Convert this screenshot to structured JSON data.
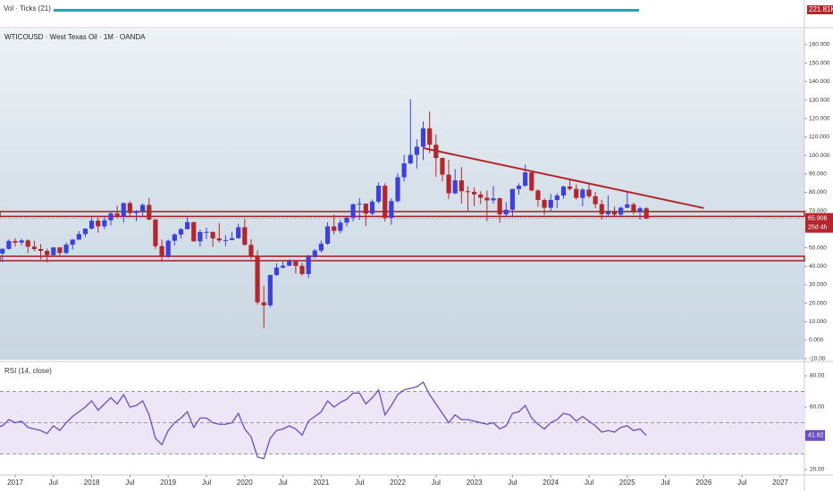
{
  "chart_data": [
    {
      "type": "candlestick",
      "title": "WTICOUSD · West Texas Oil · 1M · OANDA",
      "up_color": "#3d40e0",
      "down_color": "#b3262b",
      "x": [
        "2016-10",
        "2016-11",
        "2016-12",
        "2017-01",
        "2017-02",
        "2017-03",
        "2017-04",
        "2017-05",
        "2017-06",
        "2017-07",
        "2017-08",
        "2017-09",
        "2017-10",
        "2017-11",
        "2017-12",
        "2018-01",
        "2018-02",
        "2018-03",
        "2018-04",
        "2018-05",
        "2018-06",
        "2018-07",
        "2018-08",
        "2018-09",
        "2018-10",
        "2018-11",
        "2018-12",
        "2019-01",
        "2019-02",
        "2019-03",
        "2019-04",
        "2019-05",
        "2019-06",
        "2019-07",
        "2019-08",
        "2019-09",
        "2019-10",
        "2019-11",
        "2019-12",
        "2020-01",
        "2020-02",
        "2020-03",
        "2020-04",
        "2020-05",
        "2020-06",
        "2020-07",
        "2020-08",
        "2020-09",
        "2020-10",
        "2020-11",
        "2020-12",
        "2021-01",
        "2021-02",
        "2021-03",
        "2021-04",
        "2021-05",
        "2021-06",
        "2021-07",
        "2021-08",
        "2021-09",
        "2021-10",
        "2021-11",
        "2021-12",
        "2022-01",
        "2022-02",
        "2022-03",
        "2022-04",
        "2022-05",
        "2022-06",
        "2022-07",
        "2022-08",
        "2022-09",
        "2022-10",
        "2022-11",
        "2022-12",
        "2023-01",
        "2023-02",
        "2023-03",
        "2023-04",
        "2023-05",
        "2023-06",
        "2023-07",
        "2023-08",
        "2023-09",
        "2023-10",
        "2023-11",
        "2023-12",
        "2024-01",
        "2024-02",
        "2024-03",
        "2024-04",
        "2024-05",
        "2024-06",
        "2024-07",
        "2024-08",
        "2024-09",
        "2024-10",
        "2024-11",
        "2024-12",
        "2025-01",
        "2025-02",
        "2025-03",
        "2025-04"
      ],
      "ohlc": [
        [
          48.5,
          51.9,
          43.6,
          46.9
        ],
        [
          46.9,
          49.9,
          42.2,
          49.4
        ],
        [
          49.4,
          54.5,
          49.0,
          53.7
        ],
        [
          53.7,
          55.2,
          50.7,
          52.8
        ],
        [
          52.8,
          54.9,
          51.2,
          54.0
        ],
        [
          54.0,
          54.6,
          47.1,
          50.6
        ],
        [
          50.6,
          53.8,
          48.2,
          49.3
        ],
        [
          49.3,
          52.0,
          43.8,
          48.3
        ],
        [
          48.3,
          49.6,
          42.1,
          46.0
        ],
        [
          46.0,
          50.4,
          45.4,
          50.2
        ],
        [
          50.2,
          50.4,
          45.6,
          47.2
        ],
        [
          47.2,
          52.9,
          46.5,
          51.7
        ],
        [
          51.7,
          54.8,
          49.1,
          54.4
        ],
        [
          54.4,
          59.1,
          54.3,
          57.4
        ],
        [
          57.4,
          60.5,
          55.8,
          60.4
        ],
        [
          60.4,
          66.6,
          59.8,
          64.7
        ],
        [
          64.7,
          66.3,
          58.1,
          61.6
        ],
        [
          61.6,
          66.6,
          60.1,
          64.9
        ],
        [
          64.9,
          69.6,
          62.1,
          68.6
        ],
        [
          68.6,
          72.9,
          66.1,
          67.0
        ],
        [
          67.0,
          74.5,
          63.6,
          74.2
        ],
        [
          74.2,
          75.3,
          67.0,
          68.8
        ],
        [
          68.8,
          70.4,
          64.4,
          69.8
        ],
        [
          69.8,
          74.0,
          67.1,
          73.2
        ],
        [
          73.2,
          76.9,
          64.9,
          65.3
        ],
        [
          65.3,
          65.5,
          49.4,
          50.9
        ],
        [
          50.9,
          54.5,
          42.4,
          45.4
        ],
        [
          45.4,
          54.4,
          44.5,
          53.8
        ],
        [
          53.8,
          57.8,
          51.2,
          57.2
        ],
        [
          57.2,
          60.7,
          55.0,
          60.1
        ],
        [
          60.1,
          66.5,
          59.9,
          63.9
        ],
        [
          63.9,
          64.0,
          53.3,
          53.5
        ],
        [
          53.5,
          59.9,
          50.6,
          58.5
        ],
        [
          58.5,
          60.9,
          54.7,
          58.6
        ],
        [
          58.6,
          58.8,
          50.5,
          55.1
        ],
        [
          55.1,
          63.4,
          52.8,
          54.0
        ],
        [
          54.0,
          56.8,
          50.9,
          54.2
        ],
        [
          54.2,
          58.7,
          54.0,
          55.2
        ],
        [
          55.2,
          63.1,
          55.0,
          61.1
        ],
        [
          61.1,
          65.7,
          51.2,
          51.6
        ],
        [
          51.6,
          54.6,
          43.9,
          45.1
        ],
        [
          45.1,
          48.6,
          19.4,
          20.5
        ],
        [
          20.5,
          29.2,
          6.5,
          18.8
        ],
        [
          18.8,
          35.4,
          17.8,
          35.3
        ],
        [
          35.3,
          41.6,
          34.6,
          39.3
        ],
        [
          39.3,
          42.5,
          38.7,
          40.3
        ],
        [
          40.3,
          43.8,
          40.0,
          42.6
        ],
        [
          42.6,
          43.5,
          36.1,
          40.2
        ],
        [
          40.2,
          41.9,
          34.9,
          35.8
        ],
        [
          35.8,
          46.3,
          33.7,
          45.3
        ],
        [
          45.3,
          49.3,
          44.3,
          48.5
        ],
        [
          48.5,
          53.9,
          47.3,
          52.2
        ],
        [
          52.2,
          63.8,
          51.6,
          61.6
        ],
        [
          61.6,
          67.9,
          57.3,
          59.2
        ],
        [
          59.2,
          65.2,
          57.8,
          63.6
        ],
        [
          63.6,
          67.1,
          61.6,
          66.3
        ],
        [
          66.3,
          74.0,
          64.3,
          73.5
        ],
        [
          73.5,
          76.9,
          65.1,
          73.9
        ],
        [
          73.9,
          74.0,
          61.8,
          68.5
        ],
        [
          68.5,
          76.1,
          67.6,
          75.0
        ],
        [
          75.0,
          85.4,
          74.0,
          83.6
        ],
        [
          83.6,
          84.9,
          64.4,
          66.2
        ],
        [
          66.2,
          76.8,
          62.5,
          75.3
        ],
        [
          75.3,
          90.3,
          74.4,
          88.2
        ],
        [
          88.2,
          100.4,
          85.9,
          95.7
        ],
        [
          95.7,
          130.5,
          95.1,
          100.3
        ],
        [
          100.3,
          108.7,
          92.9,
          104.7
        ],
        [
          104.7,
          118.4,
          97.5,
          114.7
        ],
        [
          114.7,
          123.9,
          101.2,
          105.8
        ],
        [
          105.8,
          111.3,
          88.4,
          98.6
        ],
        [
          98.6,
          98.9,
          85.9,
          89.6
        ],
        [
          89.6,
          97.7,
          76.4,
          79.5
        ],
        [
          79.5,
          92.6,
          79.0,
          86.5
        ],
        [
          86.5,
          93.7,
          74.0,
          80.6
        ],
        [
          80.6,
          83.3,
          70.1,
          80.3
        ],
        [
          80.3,
          82.7,
          72.5,
          78.9
        ],
        [
          78.9,
          80.6,
          73.7,
          77.1
        ],
        [
          77.1,
          81.0,
          64.4,
          75.7
        ],
        [
          75.7,
          83.5,
          73.9,
          76.8
        ],
        [
          76.8,
          77.2,
          63.6,
          68.1
        ],
        [
          68.1,
          74.6,
          66.9,
          70.6
        ],
        [
          70.6,
          82.0,
          67.1,
          81.8
        ],
        [
          81.8,
          84.9,
          78.8,
          83.6
        ],
        [
          83.6,
          95.0,
          83.0,
          90.8
        ],
        [
          90.8,
          91.1,
          80.6,
          81.0
        ],
        [
          81.0,
          81.7,
          72.2,
          75.9
        ],
        [
          75.9,
          76.8,
          67.8,
          71.7
        ],
        [
          71.7,
          79.2,
          69.5,
          75.9
        ],
        [
          75.9,
          79.5,
          71.4,
          78.3
        ],
        [
          78.3,
          83.7,
          76.6,
          83.2
        ],
        [
          83.2,
          87.6,
          81.0,
          81.9
        ],
        [
          81.9,
          84.4,
          76.0,
          77.0
        ],
        [
          77.0,
          82.4,
          72.5,
          81.5
        ],
        [
          81.5,
          84.5,
          76.8,
          77.9
        ],
        [
          77.9,
          80.2,
          71.4,
          73.6
        ],
        [
          73.6,
          75.9,
          65.2,
          68.2
        ],
        [
          68.2,
          78.3,
          66.9,
          69.3
        ],
        [
          69.3,
          72.3,
          66.6,
          68.0
        ],
        [
          68.0,
          72.3,
          67.1,
          71.7
        ],
        [
          71.7,
          80.7,
          71.4,
          73.5
        ],
        [
          73.5,
          74.5,
          68.1,
          69.8
        ],
        [
          69.8,
          72.4,
          65.2,
          71.4
        ],
        [
          71.4,
          72.0,
          65.3,
          65.9
        ]
      ],
      "ylim": [
        -10,
        160
      ],
      "yticks": [
        {
          "value": -10,
          "label": "-10.00"
        },
        {
          "value": 0,
          "label": "0.000"
        },
        {
          "value": 10,
          "label": "10.000"
        },
        {
          "value": 20,
          "label": "20.000"
        },
        {
          "value": 30,
          "label": "30.000"
        },
        {
          "value": 40,
          "label": "40.000"
        },
        {
          "value": 50,
          "label": "50.000"
        },
        {
          "value": 60,
          "label": "60.000"
        },
        {
          "value": 70,
          "label": "70.000"
        },
        {
          "value": 80,
          "label": "80.000"
        },
        {
          "value": 90,
          "label": "90.000"
        },
        {
          "value": 100,
          "label": "100.000"
        },
        {
          "value": 110,
          "label": "110.000"
        },
        {
          "value": 120,
          "label": "120.000"
        },
        {
          "value": 130,
          "label": "130.000"
        },
        {
          "value": 140,
          "label": "140.000"
        },
        {
          "value": 150,
          "label": "150.000"
        },
        {
          "value": 160,
          "label": "160.000"
        }
      ],
      "zones": [
        [
          67,
          69.6
        ],
        [
          43,
          45.4
        ]
      ],
      "zone_color": "#a01d22",
      "trendline": {
        "x": [
          "2022-05",
          "2026-01"
        ],
        "y": [
          104,
          71.5
        ],
        "color": "#b3262b"
      },
      "last_price": {
        "value": 65.906,
        "label": "65.906"
      },
      "countdown": "25d 4h",
      "xticks": [
        {
          "value": "2017-01",
          "label": "2017"
        },
        {
          "value": "2017-07",
          "label": "Jul"
        },
        {
          "value": "2018-01",
          "label": "2018"
        },
        {
          "value": "2018-07",
          "label": "Jul"
        },
        {
          "value": "2019-01",
          "label": "2019"
        },
        {
          "value": "2019-07",
          "label": "Jul"
        },
        {
          "value": "2020-01",
          "label": "2020"
        },
        {
          "value": "2020-07",
          "label": "Jul"
        },
        {
          "value": "2021-01",
          "label": "2021"
        },
        {
          "value": "2021-07",
          "label": "Jul"
        },
        {
          "value": "2022-01",
          "label": "2022"
        },
        {
          "value": "2022-07",
          "label": "Jul"
        },
        {
          "value": "2023-01",
          "label": "2023"
        },
        {
          "value": "2023-07",
          "label": "Jul"
        },
        {
          "value": "2024-01",
          "label": "2024"
        },
        {
          "value": "2024-07",
          "label": "Jul"
        },
        {
          "value": "2025-01",
          "label": "2025"
        },
        {
          "value": "2025-07",
          "label": "Jul"
        },
        {
          "value": "2026-01",
          "label": "2026"
        },
        {
          "value": "2026-07",
          "label": "Jul"
        },
        {
          "value": "2027-01",
          "label": "2027"
        }
      ]
    },
    {
      "type": "line",
      "title": "RSI (14, close)",
      "color": "#6a4fc4",
      "bands": [
        30,
        50,
        70
      ],
      "values": [
        47,
        48,
        52,
        50,
        51,
        47,
        46,
        45,
        43,
        48,
        45,
        50,
        54,
        57,
        60,
        64,
        58,
        62,
        66,
        62,
        68,
        60,
        61,
        64,
        55,
        40,
        36,
        45,
        50,
        53,
        57,
        47,
        53,
        53,
        50,
        49,
        49,
        50,
        56,
        46,
        41,
        28,
        27,
        40,
        45,
        46,
        48,
        46,
        42,
        51,
        54,
        57,
        64,
        60,
        63,
        65,
        69,
        69,
        62,
        66,
        71,
        55,
        61,
        68,
        71,
        72,
        73,
        76,
        68,
        62,
        56,
        50,
        55,
        52,
        52,
        51,
        50,
        49,
        50,
        46,
        48,
        56,
        57,
        61,
        53,
        49,
        46,
        50,
        52,
        56,
        55,
        51,
        54,
        51,
        48,
        44,
        45,
        44,
        47,
        48,
        45,
        46,
        41.82
      ],
      "value_labels": [
        {
          "index": 102,
          "label": "41.82"
        }
      ],
      "ylim": [
        16,
        84
      ],
      "yticks": [
        {
          "value": 20,
          "label": "20.00"
        },
        {
          "value": 40,
          "label": "40.00"
        },
        {
          "value": 60,
          "label": "60.00"
        },
        {
          "value": 80,
          "label": "80.00"
        }
      ]
    },
    {
      "type": "volume",
      "title": "Vol · Ticks (21)",
      "last_label": "221.81K",
      "color": "#22a6b3"
    }
  ]
}
